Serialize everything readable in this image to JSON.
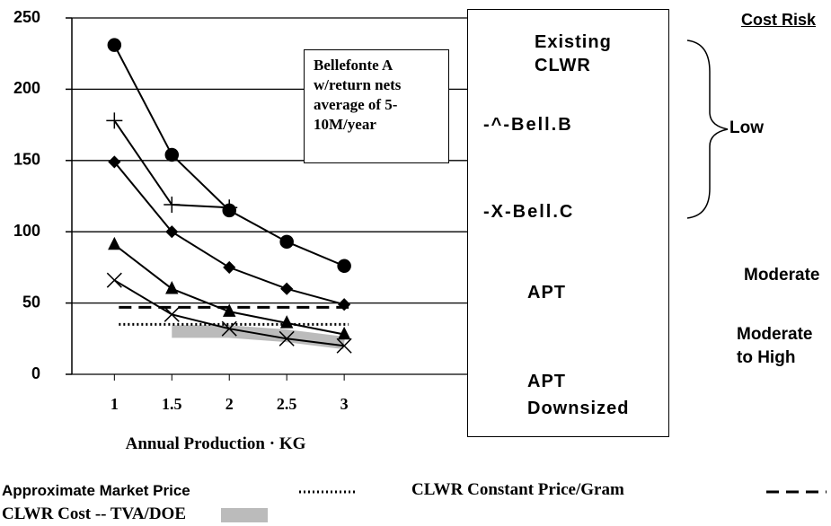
{
  "chart_data": {
    "type": "line",
    "x_label": "Annual Production · KG",
    "x": [
      1,
      1.5,
      2,
      2.5,
      3
    ],
    "xlim": [
      0.63,
      4.07
    ],
    "xticks": [
      1,
      1.5,
      2,
      2.5,
      3
    ],
    "ylim": [
      0,
      250
    ],
    "yticks": [
      0,
      50,
      100,
      150,
      200,
      250
    ],
    "grid": true,
    "series": [
      {
        "name": "Existing CLWR",
        "color": "#000000",
        "marker": "diamond",
        "values": [
          149,
          100,
          75,
          60,
          49
        ]
      },
      {
        "name": "-^-Bell.B",
        "color": "#000000",
        "marker": "triangle",
        "values": [
          91,
          60,
          44,
          36,
          28
        ]
      },
      {
        "name": "-X-Bell.C",
        "color": "#000000",
        "marker": "x",
        "values": [
          66,
          42,
          32,
          25,
          20
        ]
      },
      {
        "name": "APT",
        "color": "#000000",
        "marker": "circle",
        "values": [
          231,
          154,
          115,
          93,
          76
        ]
      },
      {
        "name": "APT Downsized",
        "color": "#000000",
        "marker": "plus",
        "values": [
          178,
          119,
          117,
          null,
          null
        ]
      }
    ],
    "reference_lines": [
      {
        "name": "Approximate Market Price",
        "value": 35,
        "style": "dotted"
      },
      {
        "name": "CLWR Constant Price/Gram",
        "value": 47,
        "style": "dashed"
      }
    ],
    "band": {
      "name": "CLWR Cost -- TVA/DOE",
      "color": "#aaaaaa",
      "values": [
        null,
        30,
        30,
        27,
        22
      ]
    },
    "annotation": "Bellefonte A w/return nets average of 5-10M/year",
    "cost_risk": {
      "title": "Cost Risk",
      "levels": [
        "Low",
        "Moderate",
        "Moderate to High"
      ]
    }
  }
}
